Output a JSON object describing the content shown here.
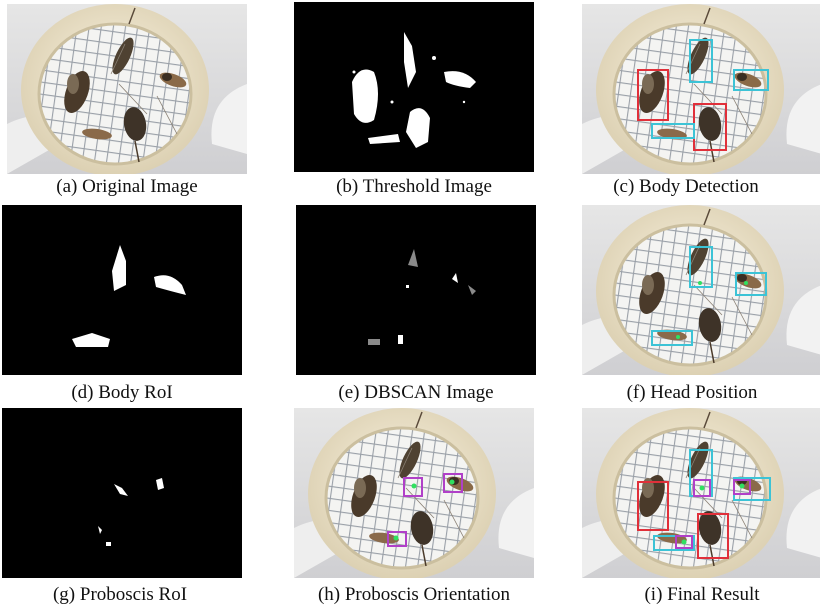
{
  "figure": {
    "panels": [
      {
        "id": "a",
        "caption": "(a) Original Image"
      },
      {
        "id": "b",
        "caption": "(b) Threshold Image"
      },
      {
        "id": "c",
        "caption": "(c) Body Detection"
      },
      {
        "id": "d",
        "caption": "(d) Body RoI"
      },
      {
        "id": "e",
        "caption": "(e) DBSCAN Image"
      },
      {
        "id": "f",
        "caption": "(f) Head Position"
      },
      {
        "id": "g",
        "caption": "(g) Proboscis RoI"
      },
      {
        "id": "h",
        "caption": "(h) Proboscis Orientation"
      },
      {
        "id": "i",
        "caption": "(i) Final Result"
      }
    ],
    "colors": {
      "body_box": "#e0303a",
      "head_box": "#3cc3d6",
      "proboscis_box": "#b040c8",
      "plate": "#efe6cf",
      "mesh": "#9aa0a8",
      "mosquito": "#4a3a2a"
    }
  }
}
